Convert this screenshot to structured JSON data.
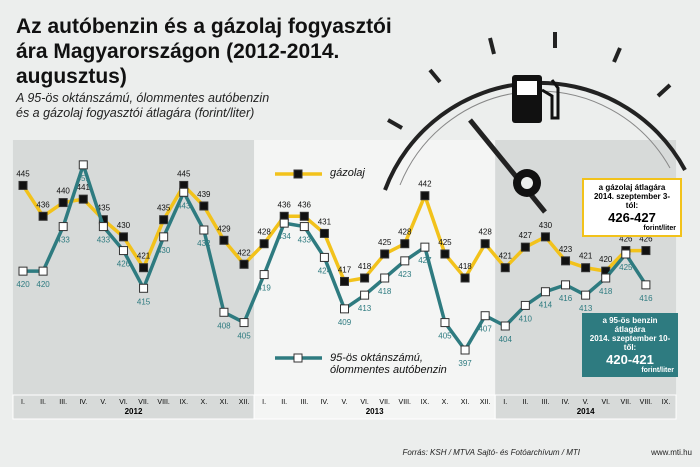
{
  "chart_data": {
    "type": "line",
    "title": "Az autóbenzin és a gázolaj fogyasztói ára Magyarországon (2012-2014. augusztus)",
    "subtitle": [
      "A 95-ös oktánszámú, ólommentes autóbenzin",
      "és a gázolaj fogyasztói átlagára (forint/liter)"
    ],
    "categories": [
      "I.",
      "II.",
      "III.",
      "IV.",
      "V.",
      "VI.",
      "VII.",
      "VIII.",
      "IX.",
      "X.",
      "XI.",
      "XII.",
      "I.",
      "II.",
      "III.",
      "IV.",
      "V.",
      "VI.",
      "VII.",
      "VIII.",
      "IX.",
      "X.",
      "XI.",
      "XII.",
      "I.",
      "II.",
      "III.",
      "IV.",
      "V.",
      "VI.",
      "VII.",
      "VIII.",
      "IX."
    ],
    "years": [
      "2012",
      "2013",
      "2014"
    ],
    "series": [
      {
        "name": "gázolaj",
        "color": "#f2c21b",
        "marker_color": "#111111",
        "values": [
          445,
          436,
          440,
          441,
          435,
          430,
          421,
          435,
          445,
          439,
          429,
          422,
          428,
          436,
          436,
          431,
          417,
          418,
          425,
          428,
          442,
          425,
          418,
          428,
          421,
          427,
          430,
          423,
          421,
          420,
          426,
          426,
          null
        ]
      },
      {
        "name": "95-ös oktánszámú, ólommentes autóbenzin",
        "color": "#2e7b80",
        "marker_color": "#ffffff",
        "values": [
          420,
          420,
          433,
          451,
          433,
          426,
          415,
          430,
          443,
          432,
          408,
          405,
          419,
          434,
          433,
          424,
          409,
          413,
          418,
          423,
          427,
          405,
          397,
          407,
          404,
          410,
          414,
          416,
          413,
          418,
          425,
          416,
          null
        ]
      }
    ],
    "ylim": [
      390,
      460
    ],
    "annotations": [
      [
        "a gázolaj átlagára",
        "2014. szeptember 3-tól:",
        "426-427",
        "forint/liter"
      ],
      [
        "a 95-ös benzin átlagára",
        "2014. szeptember 10-től:",
        "420-421",
        "forint/liter"
      ]
    ],
    "source": "Forrás: KSH / MTVA Sajtó- és Fotóarchívum / MTI",
    "website": "www.mti.hu"
  }
}
